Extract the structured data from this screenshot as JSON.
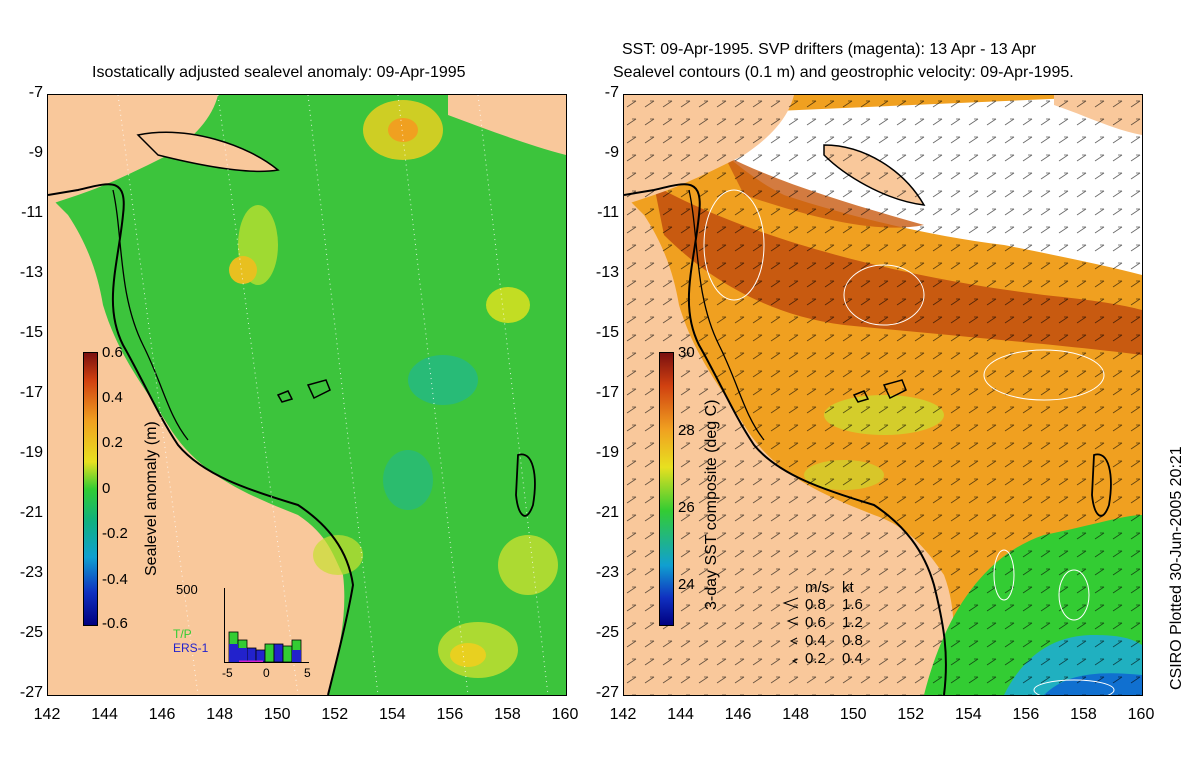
{
  "left_panel": {
    "title": "Isostatically adjusted sealevel anomaly: 09-Apr-1995",
    "colorbar": {
      "label": "Sealevel anomaly (m)",
      "ticks": [
        "0.6",
        "0.4",
        "0.2",
        "0",
        "-0.2",
        "-0.4",
        "-0.6"
      ]
    },
    "inset": {
      "ymax_label": "500",
      "series_1": "T/P",
      "series_2": "ERS-1",
      "x_ticks": [
        "-5",
        "0",
        "5"
      ],
      "series_1_color": "#33cc33",
      "series_2_color": "#2222cc"
    }
  },
  "right_panel": {
    "title_line1": "SST: 09-Apr-1995. SVP drifters (magenta): 13 Apr - 13 Apr",
    "title_line2": "Sealevel contours (0.1 m) and geostrophic velocity: 09-Apr-1995.",
    "colorbar": {
      "label": "3-day SST composite (deg C)",
      "ticks": [
        "30",
        "28",
        "26",
        "24"
      ]
    },
    "velocity_legend": {
      "header_ms": "m/s",
      "header_kt": "kt",
      "rows": [
        {
          "ms": "0.8",
          "kt": "1.6"
        },
        {
          "ms": "0.6",
          "kt": "1.2"
        },
        {
          "ms": "0.4",
          "kt": "0.8"
        },
        {
          "ms": "0.2",
          "kt": "0.4"
        }
      ]
    }
  },
  "axes": {
    "lat_ticks": [
      "-7",
      "-9",
      "-11",
      "-13",
      "-15",
      "-17",
      "-19",
      "-21",
      "-23",
      "-25",
      "-27"
    ],
    "lon_ticks": [
      "142",
      "144",
      "146",
      "148",
      "150",
      "152",
      "154",
      "156",
      "158",
      "160"
    ]
  },
  "credit": "CSIRO Plotted 30-Jun-2005 20:21",
  "colors": {
    "land": "#f9c89b",
    "ocean_green": "#33cc33",
    "anomaly_high": "#f0a020",
    "sst_warm": "#c85a10"
  }
}
